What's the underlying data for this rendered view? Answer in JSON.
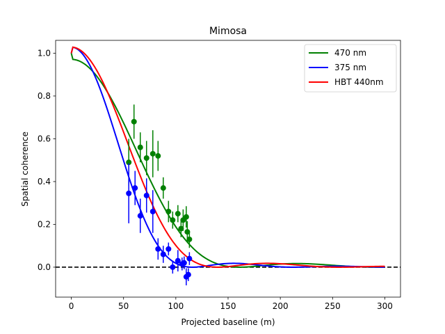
{
  "chart_data": {
    "type": "scatter",
    "title": "Mimosa",
    "xlabel": "Projected baseline (m)",
    "ylabel": "Spatial coherence",
    "xlim": [
      -15,
      315
    ],
    "ylim": [
      -0.14,
      1.06
    ],
    "xticks": [
      0,
      50,
      100,
      150,
      200,
      250,
      300
    ],
    "yticks": [
      0.0,
      0.2,
      0.4,
      0.6,
      0.8,
      1.0
    ],
    "grid": false,
    "legend_position": "top-right",
    "reference_line": {
      "y": 0.0,
      "style": "dashed",
      "color": "#000000"
    },
    "series": [
      {
        "name": "470 nm",
        "kind": "model",
        "color": "#008000",
        "first_zero_baseline": 161,
        "secondary_peak": 0.017
      },
      {
        "name": "375 nm",
        "kind": "model",
        "color": "#0000ff",
        "first_zero_baseline": 116,
        "secondary_peak": 0.018
      },
      {
        "name": "HBT 440nm",
        "kind": "model",
        "color": "#ff0000",
        "first_zero_baseline": 140,
        "secondary_peak": 0.018
      },
      {
        "kind": "measured",
        "color": "#008000",
        "points": [
          {
            "x": 55,
            "y": 0.49,
            "err": 0.11
          },
          {
            "x": 60,
            "y": 0.68,
            "err": 0.08
          },
          {
            "x": 66,
            "y": 0.56,
            "err": 0.07
          },
          {
            "x": 72,
            "y": 0.51,
            "err": 0.08
          },
          {
            "x": 78,
            "y": 0.53,
            "err": 0.11
          },
          {
            "x": 83,
            "y": 0.52,
            "err": 0.07
          },
          {
            "x": 88,
            "y": 0.37,
            "err": 0.05
          },
          {
            "x": 93,
            "y": 0.26,
            "err": 0.05
          },
          {
            "x": 97,
            "y": 0.22,
            "err": 0.04
          },
          {
            "x": 102,
            "y": 0.25,
            "err": 0.04
          },
          {
            "x": 105,
            "y": 0.18,
            "err": 0.04
          },
          {
            "x": 107,
            "y": 0.22,
            "err": 0.05
          },
          {
            "x": 110,
            "y": 0.235,
            "err": 0.05
          },
          {
            "x": 111,
            "y": 0.165,
            "err": 0.05
          },
          {
            "x": 113,
            "y": 0.13,
            "err": 0.04
          }
        ]
      },
      {
        "kind": "measured",
        "color": "#0000ff",
        "points": [
          {
            "x": 55,
            "y": 0.345,
            "err": 0.14
          },
          {
            "x": 61,
            "y": 0.37,
            "err": 0.08
          },
          {
            "x": 66,
            "y": 0.24,
            "err": 0.08
          },
          {
            "x": 72,
            "y": 0.335,
            "err": 0.08
          },
          {
            "x": 78,
            "y": 0.26,
            "err": 0.1
          },
          {
            "x": 83,
            "y": 0.085,
            "err": 0.05
          },
          {
            "x": 88,
            "y": 0.06,
            "err": 0.04
          },
          {
            "x": 93,
            "y": 0.085,
            "err": 0.03
          },
          {
            "x": 97,
            "y": 0.0,
            "err": 0.03
          },
          {
            "x": 102,
            "y": 0.03,
            "err": 0.05
          },
          {
            "x": 106,
            "y": 0.015,
            "err": 0.03
          },
          {
            "x": 108,
            "y": 0.02,
            "err": 0.03
          },
          {
            "x": 110,
            "y": -0.045,
            "err": 0.04
          },
          {
            "x": 112,
            "y": -0.035,
            "err": 0.03
          },
          {
            "x": 113,
            "y": 0.04,
            "err": 0.03
          }
        ]
      }
    ]
  }
}
